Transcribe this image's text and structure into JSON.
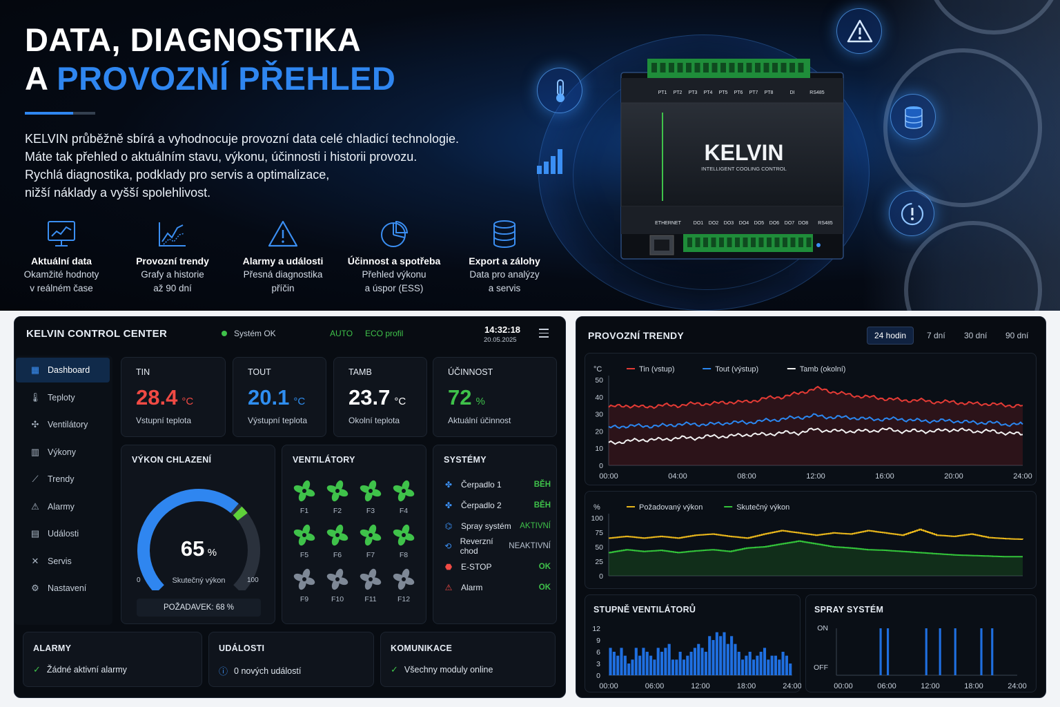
{
  "hero": {
    "title_line1": "DATA, DIAGNOSTIKA",
    "title_line2_prefix": "A ",
    "title_line2_accent": "PROVOZNÍ PŘEHLED",
    "intro_lines": [
      "KELVIN průběžně sbírá a vyhodnocuje provozní data celé chladicí technologie.",
      "Máte tak přehled o aktuálním stavu, výkonu, účinnosti i historii provozu.",
      "Rychlá diagnostika, podklady pro servis a optimalizace,",
      "nižší náklady a vyšší spolehlivost."
    ],
    "features": [
      {
        "icon": "monitor-chart-icon",
        "title": "Aktuální data",
        "sub1": "Okamžité hodnoty",
        "sub2": "v reálném čase"
      },
      {
        "icon": "trend-chart-icon",
        "title": "Provozní trendy",
        "sub1": "Grafy a historie",
        "sub2": "až 90 dní"
      },
      {
        "icon": "warning-icon",
        "title": "Alarmy a události",
        "sub1": "Přesná diagnostika",
        "sub2": "příčin"
      },
      {
        "icon": "pie-chart-icon",
        "title": "Účinnost a spotřeba",
        "sub1": "Přehled výkonu",
        "sub2": "a úspor (ESS)"
      },
      {
        "icon": "database-icon",
        "title": "Export a zálohy",
        "sub1": "Data pro analýzy",
        "sub2": "a servis"
      }
    ],
    "device": {
      "brand": "KELVIN",
      "subtitle": "INTELLIGENT COOLING CONTROL",
      "top_ports": [
        "PT1",
        "PT2",
        "PT3",
        "PT4",
        "PT5",
        "PT6",
        "PT7",
        "PT8",
        "DI",
        "RS485"
      ],
      "bottom_ports": [
        "ETHERNET",
        "DO1",
        "DO2",
        "DO3",
        "DO4",
        "DO5",
        "DO6",
        "DO7",
        "DO8",
        "RS485"
      ]
    }
  },
  "control_center": {
    "title": "KELVIN CONTROL CENTER",
    "status": "Systém OK",
    "mode": "AUTO",
    "profile": "ECO profil",
    "time": "14:32:18",
    "date": "20.05.2025",
    "nav": [
      {
        "label": "Dashboard",
        "icon": "grid-icon"
      },
      {
        "label": "Teploty",
        "icon": "thermometer-icon"
      },
      {
        "label": "Ventilátory",
        "icon": "fan-icon"
      },
      {
        "label": "Výkony",
        "icon": "bar-chart-icon"
      },
      {
        "label": "Trendy",
        "icon": "trend-icon"
      },
      {
        "label": "Alarmy",
        "icon": "warning-icon"
      },
      {
        "label": "Události",
        "icon": "document-icon"
      },
      {
        "label": "Servis",
        "icon": "tools-icon"
      },
      {
        "label": "Nastavení",
        "icon": "gear-icon"
      }
    ],
    "kpis": [
      {
        "label": "TIN",
        "value": "28.4",
        "unit": "°C",
        "sub": "Vstupní teplota",
        "color": "#f04a44"
      },
      {
        "label": "TOUT",
        "value": "20.1",
        "unit": "°C",
        "sub": "Výstupní teplota",
        "color": "#2f8ef0"
      },
      {
        "label": "TAMB",
        "value": "23.7",
        "unit": "°C",
        "sub": "Okolní teplota",
        "color": "#ffffff"
      },
      {
        "label": "ÚČINNOST",
        "value": "72",
        "unit": "%",
        "sub": "Aktuální účinnost",
        "color": "#3fc24a"
      }
    ],
    "cooling": {
      "title": "VÝKON CHLAZENÍ",
      "value": "65",
      "unit": "%",
      "fraction": 0.65,
      "target_fraction": 0.68,
      "min": "0",
      "max": "100",
      "sub": "Skutečný výkon",
      "request": "POŽADAVEK: 68 %"
    },
    "fans": {
      "title": "VENTILÁTORY",
      "items": [
        {
          "label": "F1",
          "on": true
        },
        {
          "label": "F2",
          "on": true
        },
        {
          "label": "F3",
          "on": true
        },
        {
          "label": "F4",
          "on": true
        },
        {
          "label": "F5",
          "on": true
        },
        {
          "label": "F6",
          "on": true
        },
        {
          "label": "F7",
          "on": true
        },
        {
          "label": "F8",
          "on": true
        },
        {
          "label": "F9",
          "on": false
        },
        {
          "label": "F10",
          "on": false
        },
        {
          "label": "F11",
          "on": false
        },
        {
          "label": "F12",
          "on": false
        }
      ]
    },
    "systems": {
      "title": "SYSTÉMY",
      "items": [
        {
          "label": "Čerpadlo 1",
          "status": "BĚH",
          "color": "#3fc24a",
          "icon": "pump-icon"
        },
        {
          "label": "Čerpadlo 2",
          "status": "BĚH",
          "color": "#3fc24a",
          "icon": "pump-icon"
        },
        {
          "label": "Spray systém",
          "status": "AKTIVNÍ",
          "color": "#3fc24a",
          "icon": "spray-icon"
        },
        {
          "label": "Reverzní chod",
          "status": "NEAKTIVNÍ",
          "color": "#b8c2cf",
          "icon": "reverse-icon"
        },
        {
          "label": "E-STOP",
          "status": "OK",
          "color": "#3fc24a",
          "icon": "estop-icon"
        },
        {
          "label": "Alarm",
          "status": "OK",
          "color": "#3fc24a",
          "icon": "alarm-icon"
        }
      ]
    },
    "footer": [
      {
        "title": "ALARMY",
        "text": "Žádné aktivní alarmy",
        "icon": "check-icon"
      },
      {
        "title": "UDÁLOSTI",
        "text": "0 nových událostí",
        "icon": "info-icon"
      },
      {
        "title": "KOMUNIKACE",
        "text": "Všechny moduly online",
        "icon": "check-circle-icon"
      }
    ]
  },
  "trends": {
    "title": "PROVOZNÍ TRENDY",
    "tabs": [
      "24 hodin",
      "7 dní",
      "30 dní",
      "90 dní"
    ],
    "selected_tab": "24 hodin"
  },
  "chart_data": [
    {
      "type": "line",
      "ylabel": "°C",
      "ylim": [
        0,
        50
      ],
      "yticks": [
        "50",
        "40",
        "30",
        "20",
        "10",
        "0"
      ],
      "xticks": [
        "00:00",
        "04:00",
        "08:00",
        "12:00",
        "16:00",
        "20:00",
        "24:00"
      ],
      "x_hours": [
        0,
        1,
        2,
        3,
        4,
        5,
        6,
        7,
        8,
        9,
        10,
        11,
        12,
        13,
        14,
        15,
        16,
        17,
        18,
        19,
        20,
        21,
        22,
        23,
        24
      ],
      "series": [
        {
          "name": "Tin (vstup)",
          "color": "#e53b35",
          "values": [
            34,
            35,
            34,
            35,
            35,
            36,
            36,
            37,
            37,
            39,
            40,
            42,
            45,
            43,
            41,
            40,
            39,
            38,
            38,
            37,
            37,
            36,
            36,
            35,
            35
          ]
        },
        {
          "name": "Tout (výstup)",
          "color": "#2b87f0",
          "values": [
            22,
            23,
            23,
            23,
            24,
            24,
            24,
            25,
            25,
            26,
            27,
            28,
            29,
            28,
            28,
            27,
            27,
            27,
            26,
            26,
            26,
            25,
            25,
            24,
            24
          ]
        },
        {
          "name": "Tamb (okolní)",
          "color": "#f2f2f2",
          "values": [
            13,
            14,
            15,
            15,
            16,
            16,
            17,
            17,
            18,
            18,
            19,
            19,
            21,
            20,
            20,
            20,
            21,
            20,
            20,
            20,
            21,
            20,
            20,
            19,
            18
          ]
        }
      ]
    },
    {
      "type": "line",
      "ylabel": "%",
      "ylim": [
        0,
        100
      ],
      "yticks": [
        "100",
        "75",
        "50",
        "25",
        "0"
      ],
      "series": [
        {
          "name": "Požadovaný výkon",
          "color": "#e7b51b",
          "values": [
            65,
            68,
            65,
            68,
            65,
            70,
            72,
            68,
            65,
            72,
            78,
            74,
            70,
            74,
            72,
            78,
            74,
            70,
            80,
            70,
            68,
            72,
            66,
            64,
            63
          ]
        },
        {
          "name": "Skutečný výkon",
          "color": "#33c33a",
          "values": [
            40,
            45,
            42,
            44,
            40,
            43,
            45,
            42,
            48,
            50,
            55,
            60,
            55,
            50,
            48,
            45,
            44,
            42,
            40,
            38,
            36,
            35,
            34,
            33,
            33
          ]
        }
      ]
    },
    {
      "type": "bar",
      "title": "STUPNĚ VENTILÁTORŮ",
      "yticks": [
        "12",
        "9",
        "6",
        "3",
        "0"
      ],
      "xticks": [
        "00:00",
        "06:00",
        "12:00",
        "18:00",
        "24:00"
      ],
      "ylim": [
        0,
        12
      ],
      "values": [
        7,
        6,
        5,
        7,
        5,
        3,
        4,
        7,
        5,
        7,
        6,
        5,
        4,
        7,
        6,
        7,
        8,
        4,
        4,
        6,
        4,
        5,
        6,
        7,
        8,
        7,
        6,
        10,
        9,
        11,
        10,
        11,
        8,
        10,
        8,
        6,
        4,
        5,
        6,
        4,
        5,
        6,
        7,
        4,
        5,
        5,
        4,
        6,
        5,
        3
      ]
    },
    {
      "type": "bar",
      "title": "SPRAY SYSTÉM",
      "yticks": [
        "ON",
        "OFF"
      ],
      "xticks": [
        "00:00",
        "06:00",
        "12:00",
        "18:00",
        "24:00"
      ],
      "on_intervals": [
        [
          5.0,
          5.3
        ],
        [
          6.0,
          6.3
        ],
        [
          11.3,
          11.6
        ],
        [
          13.2,
          13.5
        ],
        [
          15.3,
          15.6
        ],
        [
          18.9,
          19.2
        ],
        [
          20.4,
          20.7
        ]
      ]
    }
  ]
}
